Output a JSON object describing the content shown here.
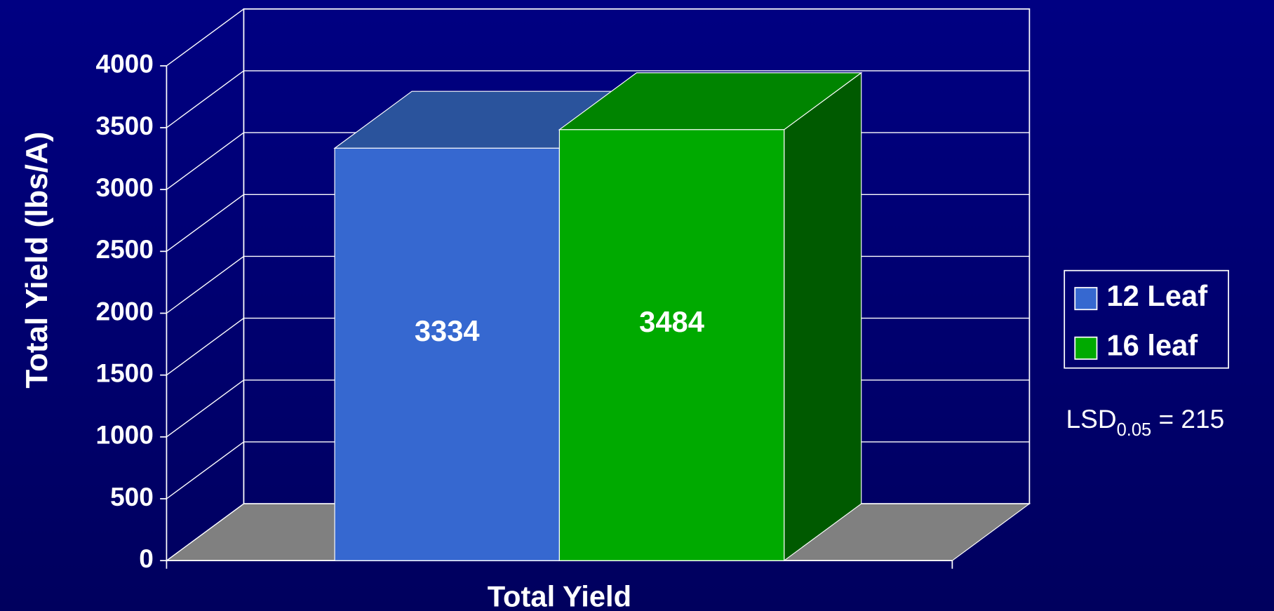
{
  "chart_data": {
    "type": "bar3d",
    "y_label": "Total Yield (lbs/A)",
    "categories": [
      "Total Yield"
    ],
    "series": [
      {
        "name": "12 Leaf",
        "color": "#3668d0",
        "top_color": "#2a539c",
        "side_color": "#2a539c",
        "values": [
          3334
        ]
      },
      {
        "name": "16 leaf",
        "color": "#00aa00",
        "top_color": "#008400",
        "side_color": "#005a00",
        "values": [
          3484
        ]
      }
    ],
    "ylim": [
      0,
      4000
    ],
    "yticks": [
      0,
      500,
      1000,
      1500,
      2000,
      2500,
      3000,
      3500,
      4000
    ],
    "grid": true,
    "legend": "right",
    "annotation": {
      "text": "LSD",
      "subscript": "0.05",
      "rest": " = 215"
    }
  }
}
